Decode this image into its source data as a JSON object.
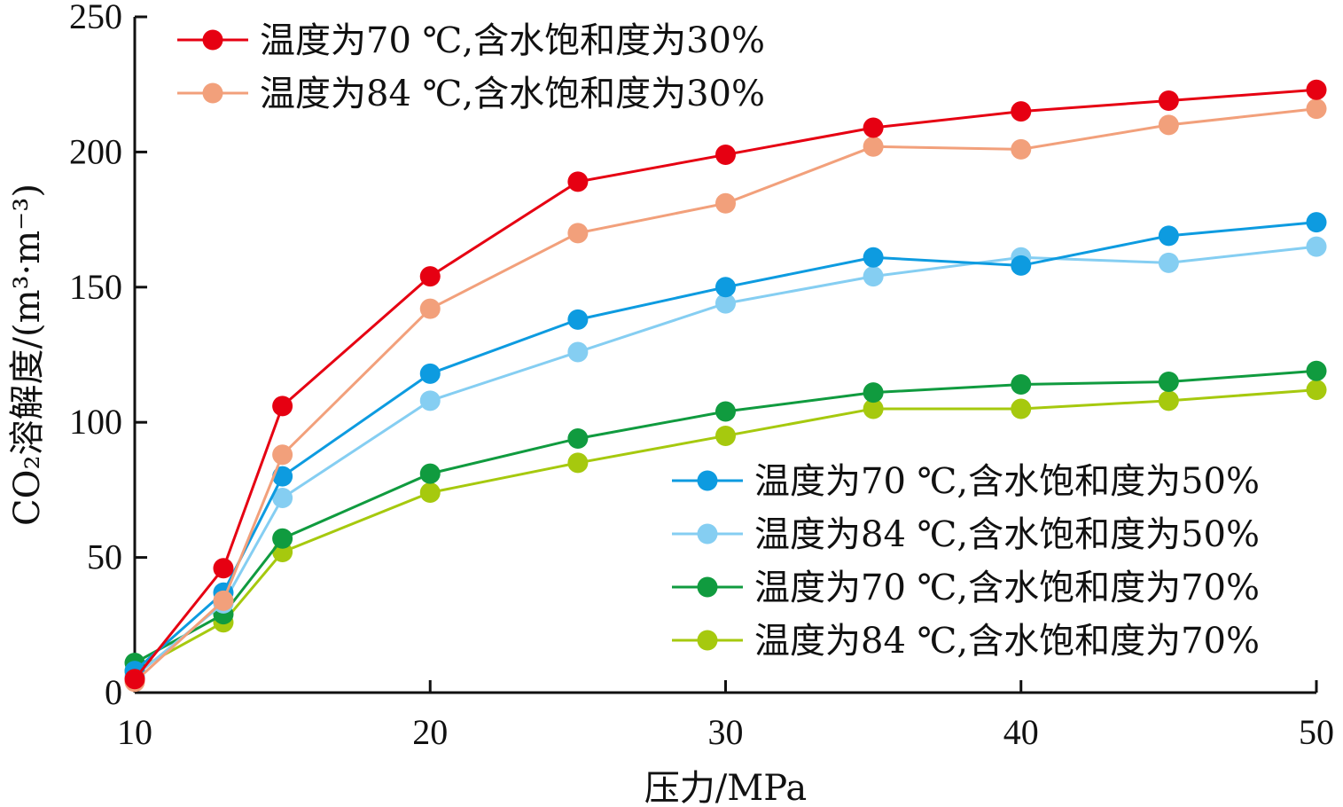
{
  "chart_data": {
    "type": "line",
    "xlabel": "压力/MPa",
    "ylabel": "CO₂溶解度/(m³·m⁻³)",
    "xlim": [
      10,
      50
    ],
    "ylim": [
      0,
      250
    ],
    "x_ticks": [
      10,
      20,
      30,
      40,
      50
    ],
    "y_ticks": [
      0,
      50,
      100,
      150,
      200,
      250
    ],
    "grid": false,
    "legend_placement": [
      "top-left",
      "bottom-right"
    ],
    "x": [
      10,
      13,
      15,
      20,
      25,
      30,
      35,
      40,
      45,
      50
    ],
    "series": [
      {
        "name": "温度为70 ℃,含水饱和度为30%",
        "color": "#e60012",
        "legend_group": 0,
        "values": [
          5,
          46,
          106,
          154,
          189,
          199,
          209,
          215,
          219,
          223
        ]
      },
      {
        "name": "温度为84 ℃,含水饱和度为30%",
        "color": "#f2a07b",
        "legend_group": 0,
        "values": [
          4,
          34,
          88,
          142,
          170,
          181,
          202,
          201,
          210,
          216
        ]
      },
      {
        "name": "温度为70 ℃,含水饱和度为50%",
        "color": "#0d9be0",
        "legend_group": 1,
        "values": [
          8,
          37,
          80,
          118,
          138,
          150,
          161,
          158,
          169,
          174
        ]
      },
      {
        "name": "温度为84 ℃,含水饱和度为50%",
        "color": "#85cef2",
        "legend_group": 1,
        "values": [
          6,
          33,
          72,
          108,
          126,
          144,
          154,
          161,
          159,
          165
        ]
      },
      {
        "name": "温度为70 ℃,含水饱和度为70%",
        "color": "#109b3f",
        "legend_group": 1,
        "values": [
          11,
          29,
          57,
          81,
          94,
          104,
          111,
          114,
          115,
          119
        ]
      },
      {
        "name": "温度为84 ℃,含水饱和度为70%",
        "color": "#a6c90e",
        "legend_group": 1,
        "values": [
          8,
          26,
          52,
          74,
          85,
          95,
          105,
          105,
          108,
          112
        ]
      }
    ]
  }
}
